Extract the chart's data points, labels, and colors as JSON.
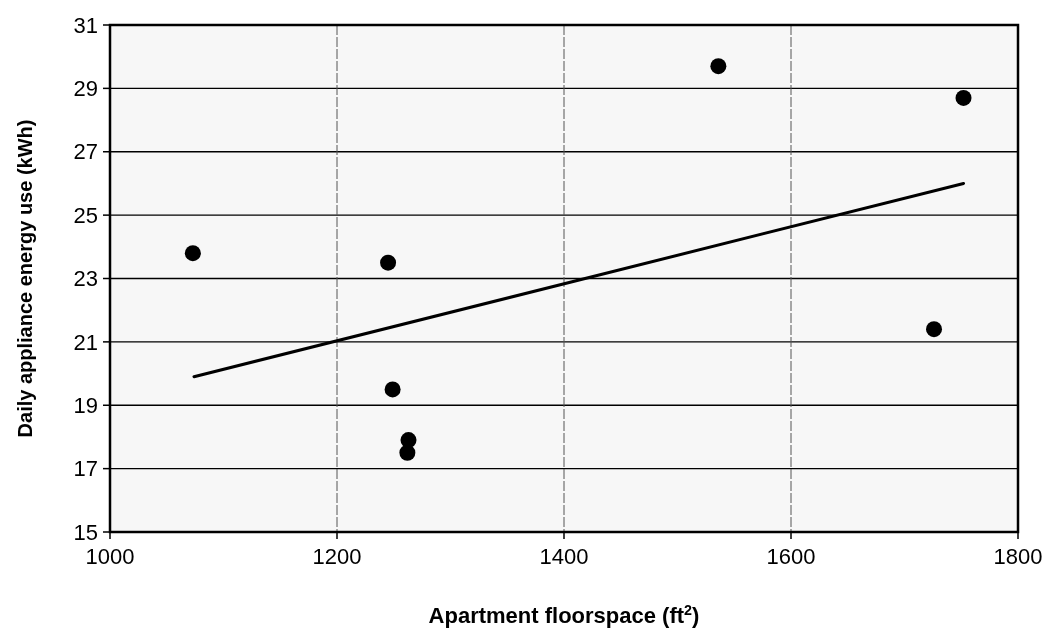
{
  "chart_data": {
    "type": "scatter",
    "xlabel": "Apartment floorspace (ft$^{2}$)",
    "ylabel": "Daily appliance energy use (kWh)",
    "xlim": [
      1000,
      1800
    ],
    "xticks": [
      1000,
      1200,
      1400,
      1600,
      1800
    ],
    "ylim": [
      15,
      31
    ],
    "yticks": [
      15,
      17,
      19,
      21,
      23,
      25,
      27,
      29,
      31
    ],
    "grid": true,
    "series": [
      {
        "color": "#000000",
        "marker": "circle",
        "x": [
          1073,
          1245,
          1249,
          1263,
          1262,
          1536,
          1752,
          1726
        ],
        "values": [
          23.8,
          23.5,
          19.5,
          17.9,
          17.5,
          29.7,
          28.7,
          21.4
        ]
      },
      {
        "type": "line",
        "color": "#000000",
        "line_style": "solid",
        "x": [
          1074,
          1752
        ],
        "values": [
          19.9,
          26.0
        ]
      }
    ]
  }
}
